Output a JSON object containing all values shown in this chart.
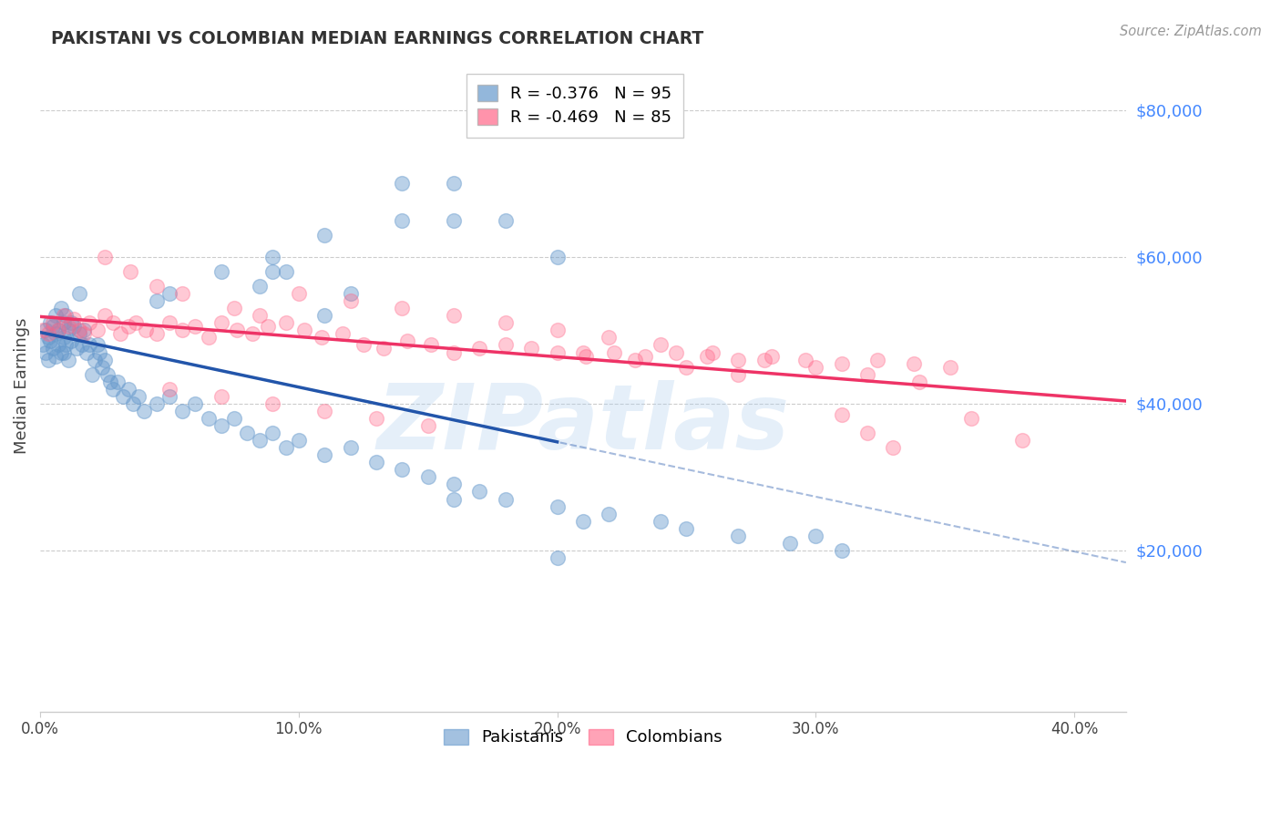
{
  "title": "PAKISTANI VS COLOMBIAN MEDIAN EARNINGS CORRELATION CHART",
  "source_text": "Source: ZipAtlas.com",
  "ylabel": "Median Earnings",
  "xlim": [
    0.0,
    0.42
  ],
  "ylim": [
    -2000,
    87000
  ],
  "ytick_values": [
    20000,
    40000,
    60000,
    80000
  ],
  "ytick_labels": [
    "$20,000",
    "$40,000",
    "$60,000",
    "$80,000"
  ],
  "watermark": "ZIPatlas",
  "blue_color": "#6699CC",
  "pink_color": "#FF6688",
  "blue_line_color": "#2255AA",
  "pink_line_color": "#EE3366",
  "blue_R": -0.376,
  "blue_N": 95,
  "pink_R": -0.469,
  "pink_N": 85,
  "pakistanis_x": [
    0.001,
    0.002,
    0.002,
    0.003,
    0.003,
    0.004,
    0.004,
    0.005,
    0.005,
    0.006,
    0.006,
    0.006,
    0.007,
    0.007,
    0.008,
    0.008,
    0.009,
    0.009,
    0.009,
    0.01,
    0.01,
    0.011,
    0.011,
    0.012,
    0.012,
    0.013,
    0.014,
    0.015,
    0.015,
    0.016,
    0.017,
    0.018,
    0.019,
    0.02,
    0.021,
    0.022,
    0.023,
    0.024,
    0.025,
    0.026,
    0.027,
    0.028,
    0.03,
    0.032,
    0.034,
    0.036,
    0.038,
    0.04,
    0.045,
    0.05,
    0.055,
    0.06,
    0.065,
    0.07,
    0.075,
    0.08,
    0.085,
    0.09,
    0.095,
    0.1,
    0.11,
    0.12,
    0.13,
    0.14,
    0.15,
    0.16,
    0.17,
    0.18,
    0.2,
    0.22,
    0.24,
    0.25,
    0.27,
    0.29,
    0.31,
    0.14,
    0.16,
    0.09,
    0.11,
    0.05,
    0.07,
    0.085,
    0.045,
    0.095,
    0.3,
    0.2,
    0.18,
    0.16,
    0.14,
    0.2,
    0.21,
    0.12,
    0.11,
    0.09,
    0.16
  ],
  "pakistanis_y": [
    48000,
    50000,
    47000,
    49000,
    46000,
    51000,
    48500,
    50500,
    47500,
    49500,
    46500,
    52000,
    48000,
    50000,
    47000,
    53000,
    49000,
    51000,
    47000,
    52000,
    48000,
    50000,
    46000,
    51000,
    48500,
    50500,
    47500,
    49500,
    55000,
    48000,
    50000,
    47000,
    48000,
    44000,
    46000,
    48000,
    47000,
    45000,
    46000,
    44000,
    43000,
    42000,
    43000,
    41000,
    42000,
    40000,
    41000,
    39000,
    40000,
    41000,
    39000,
    40000,
    38000,
    37000,
    38000,
    36000,
    35000,
    36000,
    34000,
    35000,
    33000,
    34000,
    32000,
    31000,
    30000,
    29000,
    28000,
    27000,
    26000,
    25000,
    24000,
    23000,
    22000,
    21000,
    20000,
    65000,
    70000,
    60000,
    63000,
    55000,
    58000,
    56000,
    54000,
    58000,
    22000,
    60000,
    65000,
    65000,
    70000,
    19000,
    24000,
    55000,
    52000,
    58000,
    27000
  ],
  "colombians_x": [
    0.001,
    0.003,
    0.005,
    0.007,
    0.009,
    0.011,
    0.013,
    0.015,
    0.017,
    0.019,
    0.022,
    0.025,
    0.028,
    0.031,
    0.034,
    0.037,
    0.041,
    0.045,
    0.05,
    0.055,
    0.06,
    0.065,
    0.07,
    0.076,
    0.082,
    0.088,
    0.095,
    0.102,
    0.109,
    0.117,
    0.125,
    0.133,
    0.142,
    0.151,
    0.16,
    0.17,
    0.18,
    0.19,
    0.2,
    0.211,
    0.222,
    0.234,
    0.246,
    0.258,
    0.27,
    0.283,
    0.296,
    0.31,
    0.324,
    0.338,
    0.352,
    0.1,
    0.12,
    0.14,
    0.16,
    0.18,
    0.2,
    0.22,
    0.24,
    0.26,
    0.28,
    0.3,
    0.32,
    0.34,
    0.05,
    0.07,
    0.09,
    0.11,
    0.13,
    0.15,
    0.025,
    0.035,
    0.045,
    0.055,
    0.075,
    0.085,
    0.36,
    0.38,
    0.32,
    0.25,
    0.27,
    0.23,
    0.21,
    0.31,
    0.33
  ],
  "colombians_y": [
    50000,
    49500,
    51000,
    50000,
    52000,
    50500,
    51500,
    50000,
    49500,
    51000,
    50000,
    52000,
    51000,
    49500,
    50500,
    51000,
    50000,
    49500,
    51000,
    50000,
    50500,
    49000,
    51000,
    50000,
    49500,
    50500,
    51000,
    50000,
    49000,
    49500,
    48000,
    47500,
    48500,
    48000,
    47000,
    47500,
    48000,
    47500,
    47000,
    46500,
    47000,
    46500,
    47000,
    46500,
    46000,
    46500,
    46000,
    45500,
    46000,
    45500,
    45000,
    55000,
    54000,
    53000,
    52000,
    51000,
    50000,
    49000,
    48000,
    47000,
    46000,
    45000,
    44000,
    43000,
    42000,
    41000,
    40000,
    39000,
    38000,
    37000,
    60000,
    58000,
    56000,
    55000,
    53000,
    52000,
    38000,
    35000,
    36000,
    45000,
    44000,
    46000,
    47000,
    38500,
    34000
  ]
}
